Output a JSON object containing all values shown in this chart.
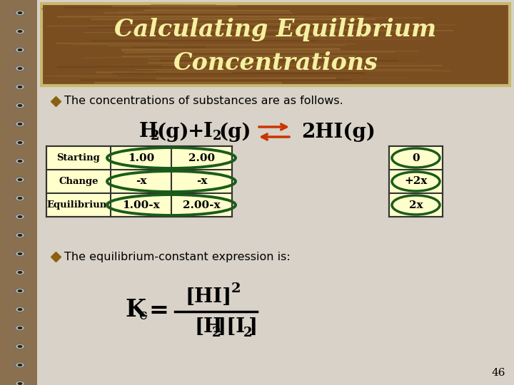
{
  "title_line1": "Calculating Equilibrium",
  "title_line2": "Concentrations",
  "title_color": "#F5F0A0",
  "title_bg_dark": "#6B4A1A",
  "title_bg_mid": "#9B7030",
  "title_border_color": "#C8B870",
  "slide_bg_color": "#D8D2C8",
  "slide_border_color": "#B8B0A0",
  "bullet_color": "#8B6010",
  "bullet1_text": "The concentrations of substances are as follows.",
  "bullet2_text": "The equilibrium-constant expression is:",
  "table_rows": [
    "Starting",
    "Change",
    "Equilibrium"
  ],
  "col1": [
    "1.00",
    "-x",
    "1.00-x"
  ],
  "col2": [
    "2.00",
    "-x",
    "2.00-x"
  ],
  "col3": [
    "0",
    "+2x",
    "2x"
  ],
  "table_bg": "#FFFFCC",
  "table_border": "#333333",
  "oval_color": "#1A5C1A",
  "page_number": "46",
  "notebook_left_color": "#A08060",
  "notebook_bg": "#F0EDE8",
  "spiral_metal": "#C0B090",
  "arrow_color": "#CC3300"
}
